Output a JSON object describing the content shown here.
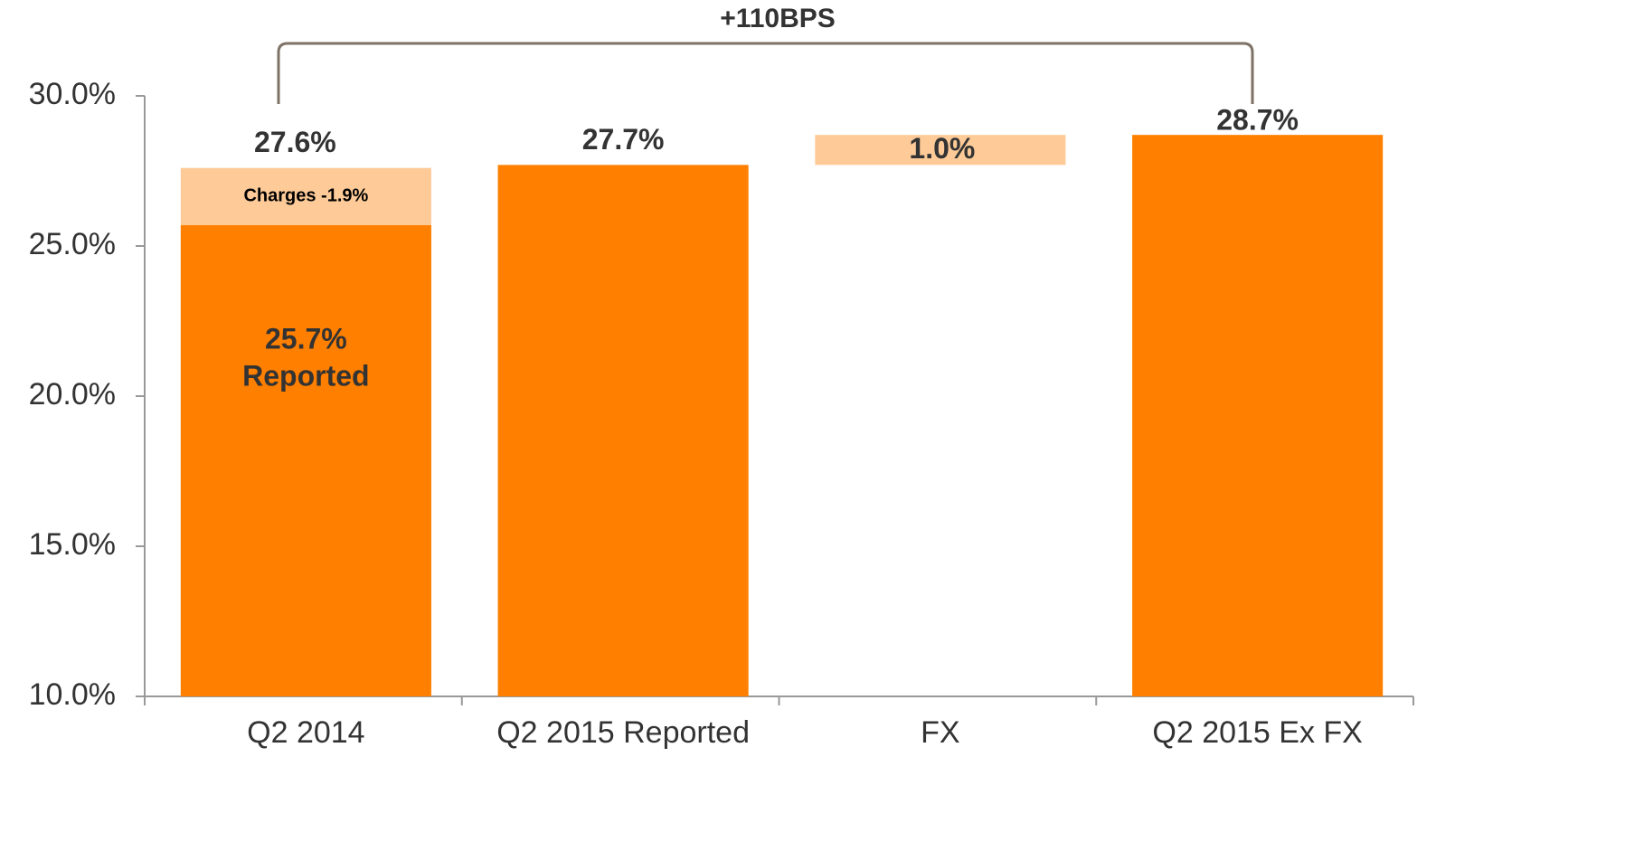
{
  "chart_data": {
    "type": "waterfall",
    "annotation": "+110BPS",
    "categories": [
      "Q2 2014",
      "Q2 2015 Reported",
      "FX",
      "Q2 2015  Ex FX"
    ],
    "values": [
      27.6,
      27.7,
      1.0,
      28.7
    ],
    "value_labels": [
      "27.6%",
      "27.7%",
      "1.0%",
      "28.7%"
    ],
    "colors": [
      "#ff7f00",
      "#ff7f00",
      "#fecb98",
      "#ff7f00"
    ],
    "reported": {
      "value": 25.7,
      "value_label": "25.7%",
      "label": "Reported",
      "color": "#ff7f00"
    },
    "charges": {
      "value": -1.9,
      "label": "Charges -1.9%",
      "color": "#fecb98"
    },
    "ylim": [
      10,
      30
    ],
    "yticks": [
      {
        "value": 10,
        "label": "10.0%"
      },
      {
        "value": 15,
        "label": "15.0%"
      },
      {
        "value": 20,
        "label": "20.0%"
      },
      {
        "value": 25,
        "label": "25.0%"
      },
      {
        "value": 30,
        "label": "30.0%"
      }
    ]
  }
}
